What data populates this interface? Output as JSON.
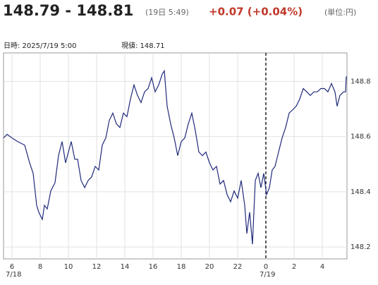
{
  "header": {
    "price": "148.79 - 148.81",
    "timestamp": "(19日 5:49)",
    "change": "+0.07 (+0.04%)",
    "unit": "(単位:円)"
  },
  "info": {
    "time": "日時: 2025/7/19 5:00",
    "current": "現値: 148.71"
  },
  "chart_data": {
    "type": "line",
    "x": [
      5.4,
      5.65,
      6,
      6.4,
      6.9,
      7.25,
      7.5,
      7.75,
      7.9,
      8.15,
      8.3,
      8.5,
      8.75,
      9.05,
      9.3,
      9.55,
      9.8,
      10,
      10.2,
      10.45,
      10.65,
      10.9,
      11.15,
      11.4,
      11.65,
      11.9,
      12.15,
      12.4,
      12.65,
      12.9,
      13.15,
      13.4,
      13.65,
      13.9,
      14.15,
      14.4,
      14.65,
      14.9,
      15.15,
      15.4,
      15.65,
      15.9,
      16.15,
      16.4,
      16.65,
      16.8,
      17,
      17.25,
      17.5,
      17.75,
      18,
      18.25,
      18.5,
      18.75,
      19,
      19.25,
      19.5,
      19.75,
      20,
      20.25,
      20.5,
      20.75,
      21,
      21.25,
      21.5,
      21.75,
      22,
      22.25,
      22.5,
      22.65,
      22.85,
      23.05,
      23.25,
      23.45,
      23.65,
      23.85,
      24.05,
      24.25,
      24.45,
      24.65,
      24.9,
      25.15,
      25.4,
      25.65,
      25.9,
      26.15,
      26.4,
      26.65,
      26.9,
      27.15,
      27.4,
      27.65,
      27.9,
      28.15,
      28.4,
      28.65,
      28.9,
      29.05,
      29.25,
      29.5,
      29.65,
      29.7
    ],
    "series": [
      {
        "color": "#1f2a7a",
        "values": [
          148.595,
          148.608,
          148.595,
          148.582,
          148.569,
          148.505,
          148.467,
          148.351,
          148.326,
          148.3,
          148.351,
          148.338,
          148.403,
          148.433,
          148.531,
          148.582,
          148.505,
          148.544,
          148.582,
          148.518,
          148.518,
          148.441,
          148.415,
          148.441,
          148.454,
          148.492,
          148.479,
          148.569,
          148.595,
          148.659,
          148.685,
          148.646,
          148.633,
          148.685,
          148.672,
          148.736,
          148.787,
          148.749,
          148.723,
          148.762,
          148.774,
          148.813,
          148.762,
          148.787,
          148.826,
          148.838,
          148.71,
          148.646,
          148.595,
          148.531,
          148.582,
          148.595,
          148.646,
          148.685,
          148.621,
          148.544,
          148.531,
          148.544,
          148.505,
          148.479,
          148.492,
          148.428,
          148.441,
          148.39,
          148.364,
          148.403,
          148.377,
          148.441,
          148.351,
          148.249,
          148.326,
          148.21,
          148.441,
          148.467,
          148.415,
          148.467,
          148.39,
          148.415,
          148.479,
          148.492,
          148.544,
          148.595,
          148.633,
          148.685,
          148.697,
          148.71,
          148.736,
          148.774,
          148.762,
          148.749,
          148.762,
          148.762,
          148.774,
          148.774,
          148.762,
          148.792,
          148.762,
          148.71,
          148.749,
          148.762,
          148.762,
          148.818
        ]
      }
    ],
    "xlim": [
      5.4,
      29.75
    ],
    "xticks": [
      6,
      8,
      10,
      12,
      14,
      16,
      18,
      20,
      22,
      {
        "value": 24,
        "label": "0"
      },
      {
        "value": 26,
        "label": "2"
      },
      {
        "value": 28,
        "label": "4"
      }
    ],
    "day_labels": [
      {
        "value": 6,
        "label": "7/18"
      },
      {
        "value": 24,
        "label": "7/19"
      }
    ],
    "ylim": [
      148.157,
      148.903
    ],
    "yticks": [
      148.2,
      148.4,
      148.6,
      148.8
    ],
    "grid": true
  }
}
